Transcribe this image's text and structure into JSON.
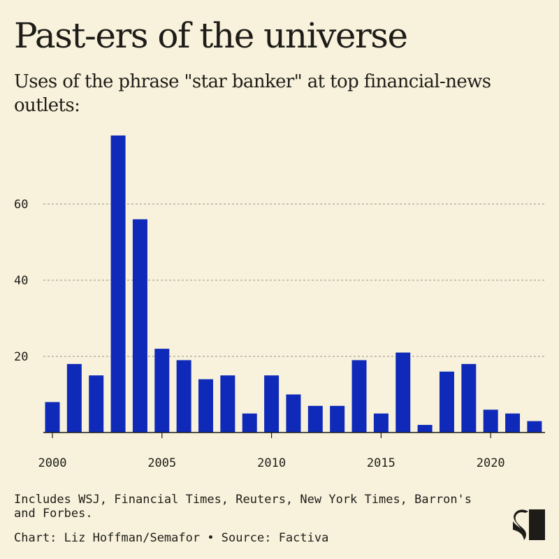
{
  "title": "Past-ers of the universe",
  "subtitle": "Uses of the phrase \"star banker\" at top financial-news outlets:",
  "notes": "Includes WSJ, Financial Times, Reuters, New York Times, Barron's and Forbes.",
  "credit": "Chart: Liz Hoffman/Semafor • Source: Factiva",
  "logo_text": "S",
  "colors": {
    "bar": "#0f2ab8",
    "background": "#f8f2dc",
    "grid": "#aaa49a"
  },
  "chart_data": {
    "type": "bar",
    "title": "Past-ers of the universe",
    "xlabel": "",
    "ylabel": "",
    "categories": [
      2000,
      2001,
      2002,
      2003,
      2004,
      2005,
      2006,
      2007,
      2008,
      2009,
      2010,
      2011,
      2012,
      2013,
      2014,
      2015,
      2016,
      2017,
      2018,
      2019,
      2020,
      2021,
      2022
    ],
    "values": [
      8,
      18,
      15,
      78,
      56,
      22,
      19,
      14,
      15,
      5,
      15,
      10,
      7,
      7,
      19,
      5,
      21,
      2,
      16,
      18,
      6,
      5,
      3
    ],
    "ylim": [
      0,
      80
    ],
    "yticks": [
      20,
      40,
      60
    ],
    "xticks": [
      2000,
      2005,
      2010,
      2015,
      2020
    ],
    "grid": true,
    "legend": "none"
  }
}
